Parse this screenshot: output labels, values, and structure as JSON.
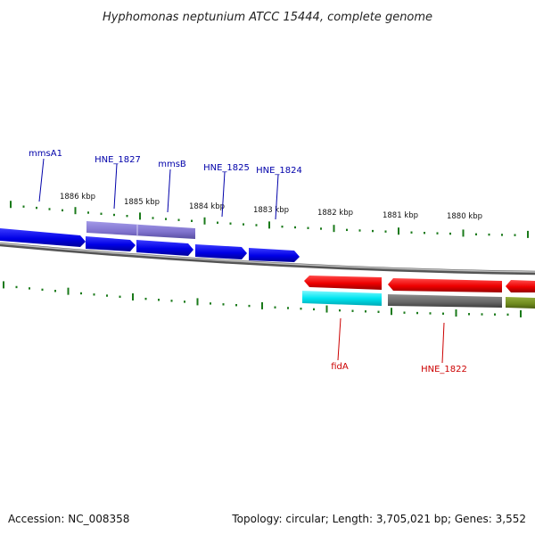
{
  "title": "Hyphomonas neptunium ATCC 15444, complete genome",
  "footer": {
    "accession": "Accession: NC_008358",
    "summary": "Topology: circular; Length: 3,705,021 bp; Genes: 3,552"
  },
  "ruler_labels": [
    "1886 kbp",
    "1885 kbp",
    "1884 kbp",
    "1883 kbp",
    "1882 kbp",
    "1881 kbp",
    "1880 kbp"
  ],
  "genes_top": [
    "mmsA1",
    "HNE_1827",
    "mmsB",
    "HNE_1825",
    "HNE_1824"
  ],
  "genes_bottom": [
    "fidA",
    "HNE_1822"
  ],
  "colors": {
    "forward_strand": "#0000ee",
    "reverse_strand": "#ee0000",
    "highlight_purple": "#7b6fd0",
    "cyan": "#00e5f0",
    "gray_feature": "#666666",
    "olive_feature": "#6f8a1e",
    "tick_green": "#1a7a1a",
    "label_blue": "#0000aa",
    "label_red": "#cc0000",
    "backbone": "#888888"
  }
}
